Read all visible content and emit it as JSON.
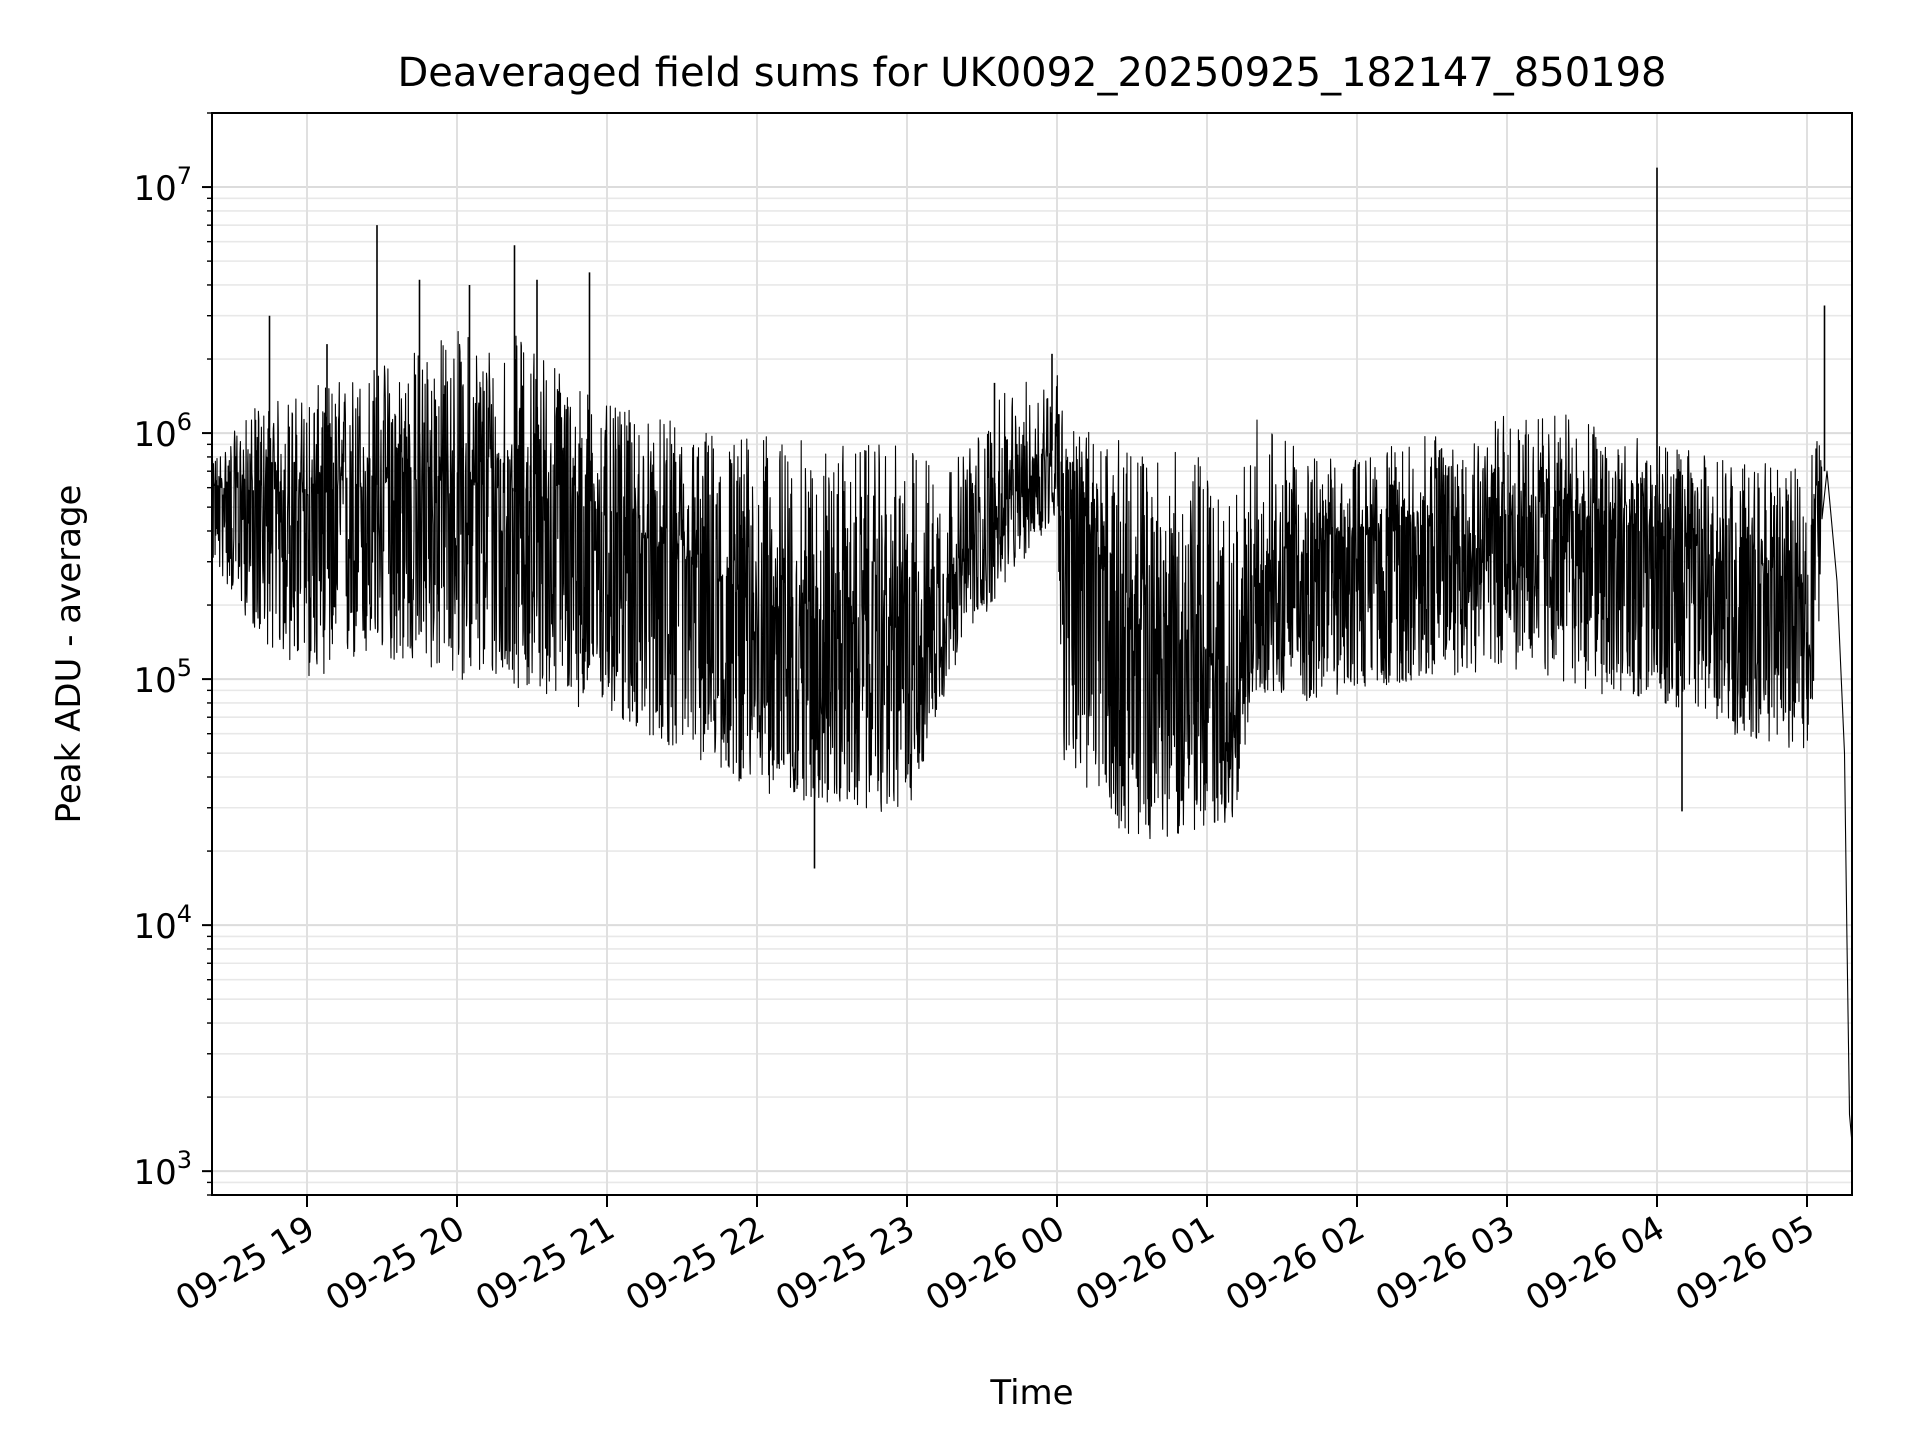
{
  "chart_data": {
    "type": "line",
    "title": "Deaveraged field sums for UK0092_20250925_182147_850198",
    "xlabel": "Time",
    "ylabel": "Peak ADU - average",
    "yscale": "log",
    "ylim": [
      800,
      20000000
    ],
    "xlim": [
      "2025-09-25 18:22",
      "2025-09-26 05:18"
    ],
    "grid": true,
    "line_color": "#000000",
    "x_ticks": [
      "09-25 19",
      "09-25 20",
      "09-25 21",
      "09-25 22",
      "09-25 23",
      "09-26 00",
      "09-26 01",
      "09-26 02",
      "09-26 03",
      "09-26 04",
      "09-26 05"
    ],
    "y_ticks": [
      {
        "base": "10",
        "exp": "3",
        "value": 1000
      },
      {
        "base": "10",
        "exp": "4",
        "value": 10000
      },
      {
        "base": "10",
        "exp": "5",
        "value": 100000
      },
      {
        "base": "10",
        "exp": "6",
        "value": 1000000
      },
      {
        "base": "10",
        "exp": "7",
        "value": 10000000
      }
    ],
    "series": [
      {
        "envelope": {
          "x": [
            "2025-09-25 18:22",
            "2025-09-25 18:40",
            "2025-09-25 19:00",
            "2025-09-25 19:30",
            "2025-09-25 20:00",
            "2025-09-25 20:30",
            "2025-09-25 21:00",
            "2025-09-25 21:30",
            "2025-09-25 22:00",
            "2025-09-25 22:30",
            "2025-09-25 23:00",
            "2025-09-25 23:20",
            "2025-09-25 23:40",
            "2025-09-26 00:00",
            "2025-09-26 00:03",
            "2025-09-26 00:30",
            "2025-09-26 01:00",
            "2025-09-26 01:10",
            "2025-09-26 01:20",
            "2025-09-26 01:40",
            "2025-09-26 02:00",
            "2025-09-26 02:30",
            "2025-09-26 03:00",
            "2025-09-26 03:30",
            "2025-09-26 04:00",
            "2025-09-26 04:30",
            "2025-09-26 05:00",
            "2025-09-26 05:06"
          ],
          "median": [
            600000,
            580000,
            560000,
            620000,
            650000,
            560000,
            460000,
            300000,
            200000,
            170000,
            160000,
            280000,
            500000,
            900000,
            650000,
            160000,
            130000,
            50000,
            280000,
            320000,
            380000,
            420000,
            460000,
            440000,
            380000,
            290000,
            230000,
            700000
          ],
          "low": [
            300000,
            150000,
            100000,
            120000,
            100000,
            90000,
            70000,
            50000,
            35000,
            30000,
            28000,
            120000,
            250000,
            450000,
            40000,
            22000,
            24000,
            25000,
            90000,
            80000,
            90000,
            100000,
            110000,
            90000,
            80000,
            60000,
            50000,
            200000
          ],
          "high": [
            800000,
            1300000,
            1500000,
            2000000,
            2700000,
            2500000,
            1300000,
            1100000,
            1000000,
            900000,
            900000,
            800000,
            1500000,
            1900000,
            1100000,
            900000,
            800000,
            500000,
            1200000,
            800000,
            800000,
            1000000,
            1200000,
            1200000,
            900000,
            800000,
            700000,
            1500000
          ]
        },
        "spikes": [
          {
            "x": "2025-09-25 18:45",
            "y": 3000000
          },
          {
            "x": "2025-09-25 19:08",
            "y": 2300000
          },
          {
            "x": "2025-09-25 19:28",
            "y": 7000000
          },
          {
            "x": "2025-09-25 19:45",
            "y": 4200000
          },
          {
            "x": "2025-09-25 20:05",
            "y": 4000000
          },
          {
            "x": "2025-09-25 20:23",
            "y": 5800000
          },
          {
            "x": "2025-09-25 20:32",
            "y": 4200000
          },
          {
            "x": "2025-09-25 20:53",
            "y": 4500000
          },
          {
            "x": "2025-09-25 22:23",
            "y": 17000
          },
          {
            "x": "2025-09-25 23:35",
            "y": 1600000
          },
          {
            "x": "2025-09-25 23:58",
            "y": 2100000
          },
          {
            "x": "2025-09-26 04:00",
            "y": 12000000
          },
          {
            "x": "2025-09-26 04:10",
            "y": 29000
          },
          {
            "x": "2025-09-26 05:07",
            "y": 3300000
          }
        ],
        "tail": {
          "x": [
            "2025-09-26 05:08",
            "2025-09-26 05:12",
            "2025-09-26 05:15",
            "2025-09-26 05:16",
            "2025-09-26 05:17",
            "2025-09-26 05:18"
          ],
          "y": [
            700000,
            250000,
            50000,
            8500,
            1700,
            1300
          ]
        }
      }
    ]
  }
}
